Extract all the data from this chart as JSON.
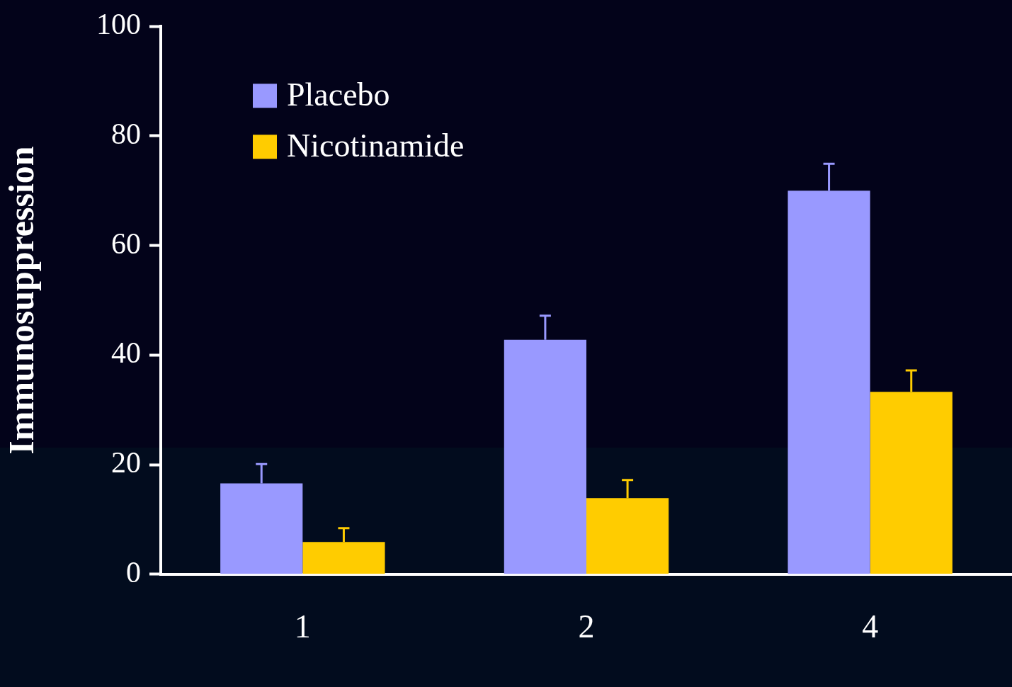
{
  "chart_data": {
    "type": "bar",
    "ylabel": "Immunosuppression",
    "categories": [
      "1",
      "2",
      "4"
    ],
    "series": [
      {
        "name": "Placebo",
        "color": "#9999ff",
        "values": [
          16.6,
          42.8,
          70
        ],
        "errors": [
          [
            16.6,
            20.1
          ],
          [
            42.8,
            47.2
          ],
          [
            70,
            74.9
          ]
        ]
      },
      {
        "name": "Nicotinamide",
        "color": "#ffcc00",
        "values": [
          5.9,
          13.9,
          33.3
        ],
        "errors": [
          [
            5.9,
            8.4
          ],
          [
            13.9,
            17.2
          ],
          [
            33.3,
            37.2
          ]
        ]
      }
    ],
    "ylim": [
      0,
      100
    ],
    "yticks": [
      0,
      20,
      40,
      60,
      80,
      100
    ],
    "grid": false,
    "legend": "top left"
  }
}
